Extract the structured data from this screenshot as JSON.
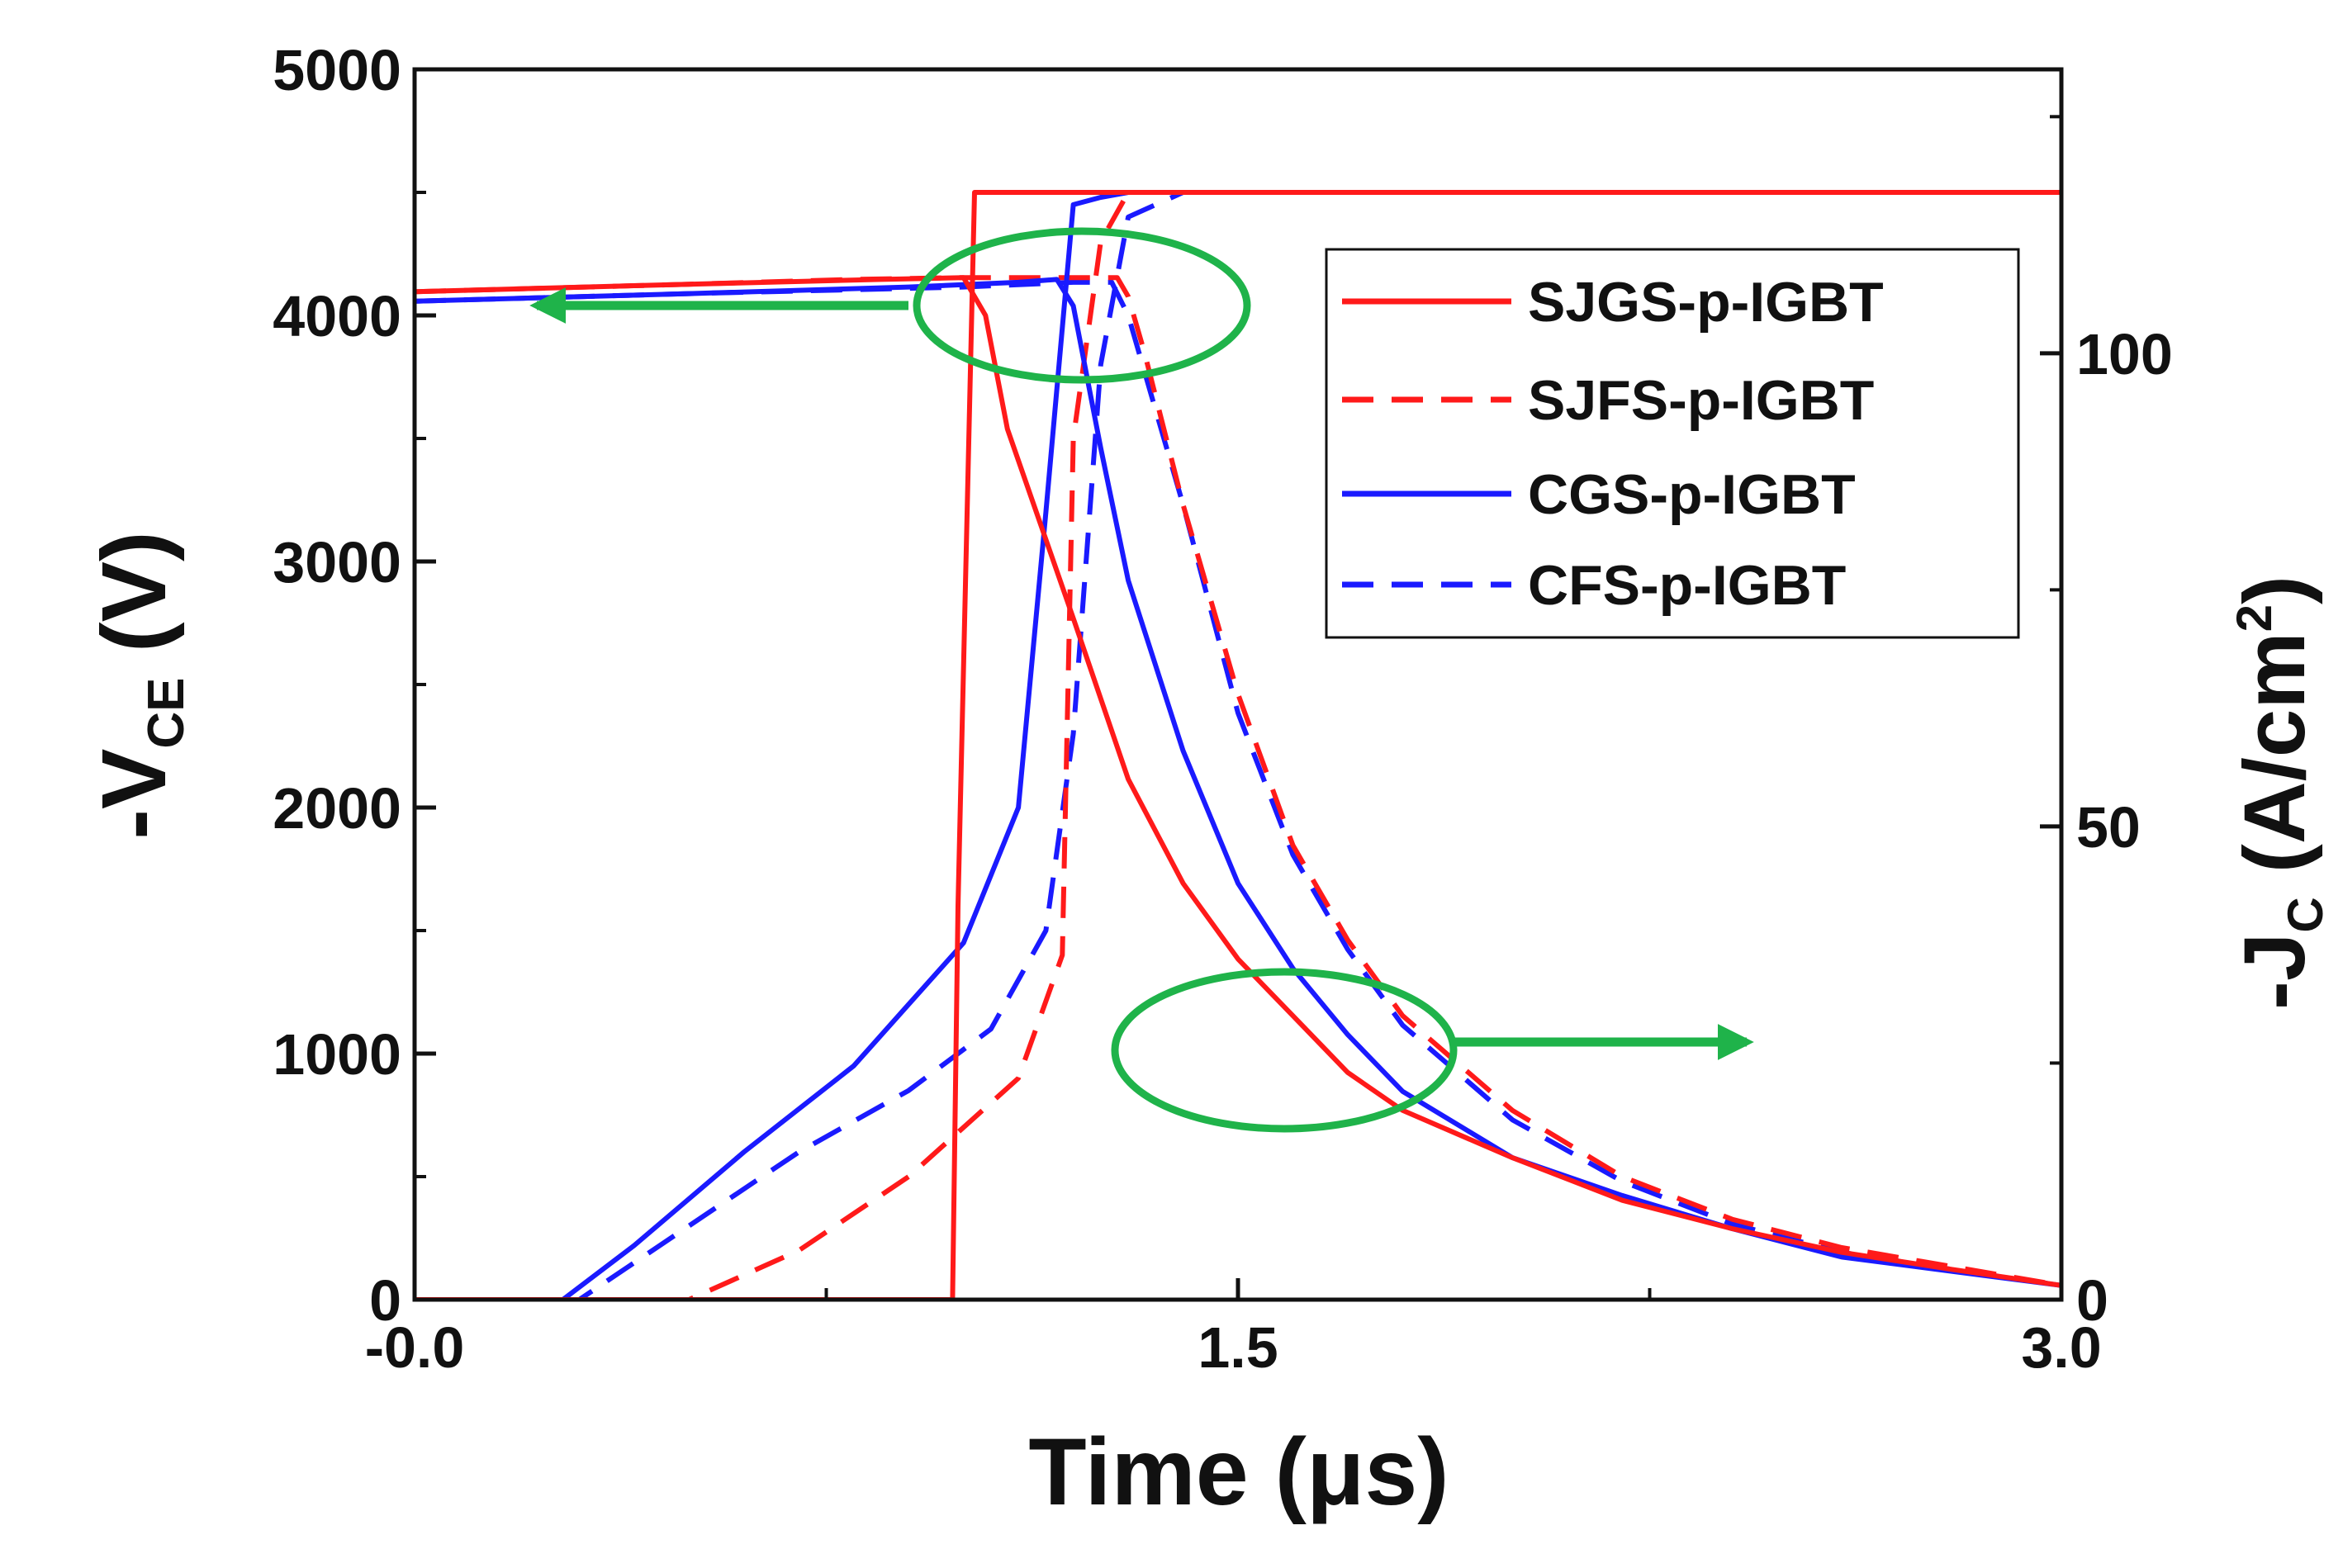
{
  "chart_data": {
    "type": "line",
    "title": "",
    "xlabel": "Time (μs)",
    "ylabel_left": {
      "prefix": "-V",
      "subscript": "CE",
      "suffix": " (V)"
    },
    "ylabel_right": {
      "prefix": "-J",
      "subscript": "C",
      "suffix": " (A/cm",
      "superscript": "2",
      "close": ")"
    },
    "xlim": [
      0,
      3
    ],
    "ylim_left": [
      0,
      5000
    ],
    "ylim_right": [
      0,
      130
    ],
    "x_ticks": [
      0,
      1.5,
      3
    ],
    "x_tick_labels": [
      "-0.0",
      "1.5",
      "3.0"
    ],
    "y_left_ticks": [
      0,
      1000,
      2000,
      3000,
      4000,
      5000
    ],
    "y_left_tick_labels": [
      "0",
      "1000",
      "2000",
      "3000",
      "4000",
      "5000"
    ],
    "y_right_ticks": [
      0,
      50,
      100
    ],
    "y_right_tick_labels": [
      "0",
      "50",
      "100"
    ],
    "grid": false,
    "legend_position": "top-right",
    "colors": {
      "red": "#ff1a1a",
      "blue": "#1a1aff",
      "annotation": "#1fb34a"
    },
    "series": [
      {
        "name": "SJGS-p-IGBT",
        "color": "#ff1a1a",
        "dash": "solid",
        "voltage": {
          "x": [
            0,
            0.7,
            0.9,
            0.98,
            0.99,
            1.02,
            1.3,
            3.0
          ],
          "y": [
            0,
            0,
            0,
            0,
            1600,
            4500,
            4500,
            4500
          ]
        },
        "current": {
          "x": [
            0,
            0.5,
            0.85,
            1.0,
            1.02,
            1.04,
            1.08,
            1.2,
            1.3,
            1.4,
            1.5,
            1.6,
            1.7,
            1.8,
            2.0,
            2.2,
            2.4,
            2.6,
            2.8,
            3.0
          ],
          "y": [
            106.5,
            107.3,
            107.8,
            108,
            106,
            104,
            92,
            72,
            55,
            44,
            36,
            30,
            24,
            20,
            15,
            10.5,
            7.5,
            5,
            3.2,
            1.5
          ]
        }
      },
      {
        "name": "SJFS-p-IGBT",
        "color": "#ff1a1a",
        "dash": "dash",
        "voltage": {
          "x": [
            0,
            0.5,
            0.7,
            0.9,
            1.0,
            1.1,
            1.18,
            1.2,
            1.25,
            1.3,
            3.0
          ],
          "y": [
            0,
            0,
            200,
            500,
            700,
            900,
            1400,
            3500,
            4300,
            4500,
            4500
          ]
        },
        "current": {
          "x": [
            0,
            0.5,
            0.8,
            1.0,
            1.2,
            1.28,
            1.3,
            1.33,
            1.4,
            1.5,
            1.6,
            1.7,
            1.8,
            2.0,
            2.2,
            2.4,
            2.6,
            2.8,
            3.0
          ],
          "y": [
            106.5,
            107.3,
            107.8,
            108,
            108,
            108,
            106,
            100,
            84,
            64,
            48,
            38,
            30,
            20,
            13,
            8.5,
            5.5,
            3.5,
            1.5
          ]
        }
      },
      {
        "name": "CGS-p-IGBT",
        "color": "#1a1aff",
        "dash": "solid",
        "voltage": {
          "x": [
            0,
            0.27,
            0.4,
            0.6,
            0.8,
            0.9,
            1.0,
            1.1,
            1.15,
            1.2,
            1.25,
            1.3,
            1.4,
            3.0
          ],
          "y": [
            0,
            0,
            220,
            600,
            950,
            1200,
            1450,
            2000,
            3200,
            4450,
            4480,
            4500,
            4500,
            4500
          ]
        },
        "current": {
          "x": [
            0,
            0.5,
            0.9,
            1.1,
            1.17,
            1.2,
            1.25,
            1.3,
            1.4,
            1.5,
            1.6,
            1.7,
            1.8,
            2.0,
            2.2,
            2.4,
            2.6,
            2.8,
            3.0
          ],
          "y": [
            105.5,
            106.3,
            107,
            107.5,
            107.8,
            105,
            90,
            76,
            58,
            44,
            35,
            28,
            22,
            15,
            11,
            7.5,
            4.5,
            3,
            1.5
          ]
        }
      },
      {
        "name": "CFS-p-IGBT",
        "color": "#1a1aff",
        "dash": "dash",
        "voltage": {
          "x": [
            0,
            0.3,
            0.5,
            0.7,
            0.9,
            1.05,
            1.15,
            1.2,
            1.25,
            1.3,
            1.4,
            3.0
          ],
          "y": [
            0,
            0,
            300,
            600,
            850,
            1100,
            1500,
            2300,
            3800,
            4400,
            4500,
            4500
          ]
        },
        "current": {
          "x": [
            0,
            0.5,
            1.0,
            1.2,
            1.27,
            1.3,
            1.33,
            1.4,
            1.5,
            1.6,
            1.7,
            1.8,
            2.0,
            2.2,
            2.4,
            2.6,
            2.8,
            3.0
          ],
          "y": [
            105.5,
            106.3,
            107,
            107.5,
            107.5,
            104,
            98,
            84,
            62,
            47,
            37,
            29,
            19,
            12.5,
            8,
            5,
            3.2,
            1.5
          ]
        }
      }
    ]
  }
}
